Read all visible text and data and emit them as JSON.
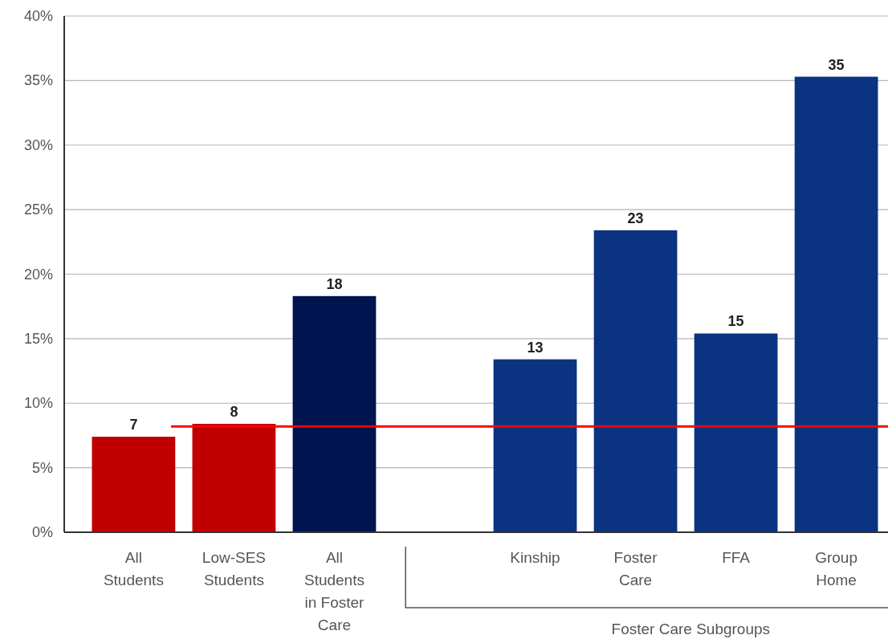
{
  "chart_data": {
    "type": "bar",
    "categories": [
      "All Students",
      "Low-SES Students",
      "All Students in Foster Care",
      null,
      "Kinship",
      "Foster Care",
      "FFA",
      "Group Home"
    ],
    "values": [
      7.4,
      8.4,
      18.3,
      null,
      13.4,
      23.4,
      15.4,
      35.3
    ],
    "colors": [
      "#c00000",
      "#c00000",
      "#001450",
      null,
      "#0a3481",
      "#0a3481",
      "#0a3481",
      "#0a3481"
    ],
    "value_labels": [
      "7",
      "8",
      "18",
      null,
      "13",
      "23",
      "15",
      "35"
    ],
    "ylim": [
      0,
      40
    ],
    "yticks": [
      {
        "value": 0,
        "label": "0%"
      },
      {
        "value": 5,
        "label": "5%"
      },
      {
        "value": 10,
        "label": "10%"
      },
      {
        "value": 15,
        "label": "15%"
      },
      {
        "value": 20,
        "label": "20%"
      },
      {
        "value": 25,
        "label": "25%"
      },
      {
        "value": 30,
        "label": "30%"
      },
      {
        "value": 35,
        "label": "35%"
      },
      {
        "value": 40,
        "label": "40%"
      }
    ],
    "grid": "y",
    "ref_lines": [
      {
        "axis": "y",
        "value": 8.2,
        "color": "#ff0000"
      }
    ],
    "annotations": [
      "Foster Care Subgroups"
    ]
  }
}
